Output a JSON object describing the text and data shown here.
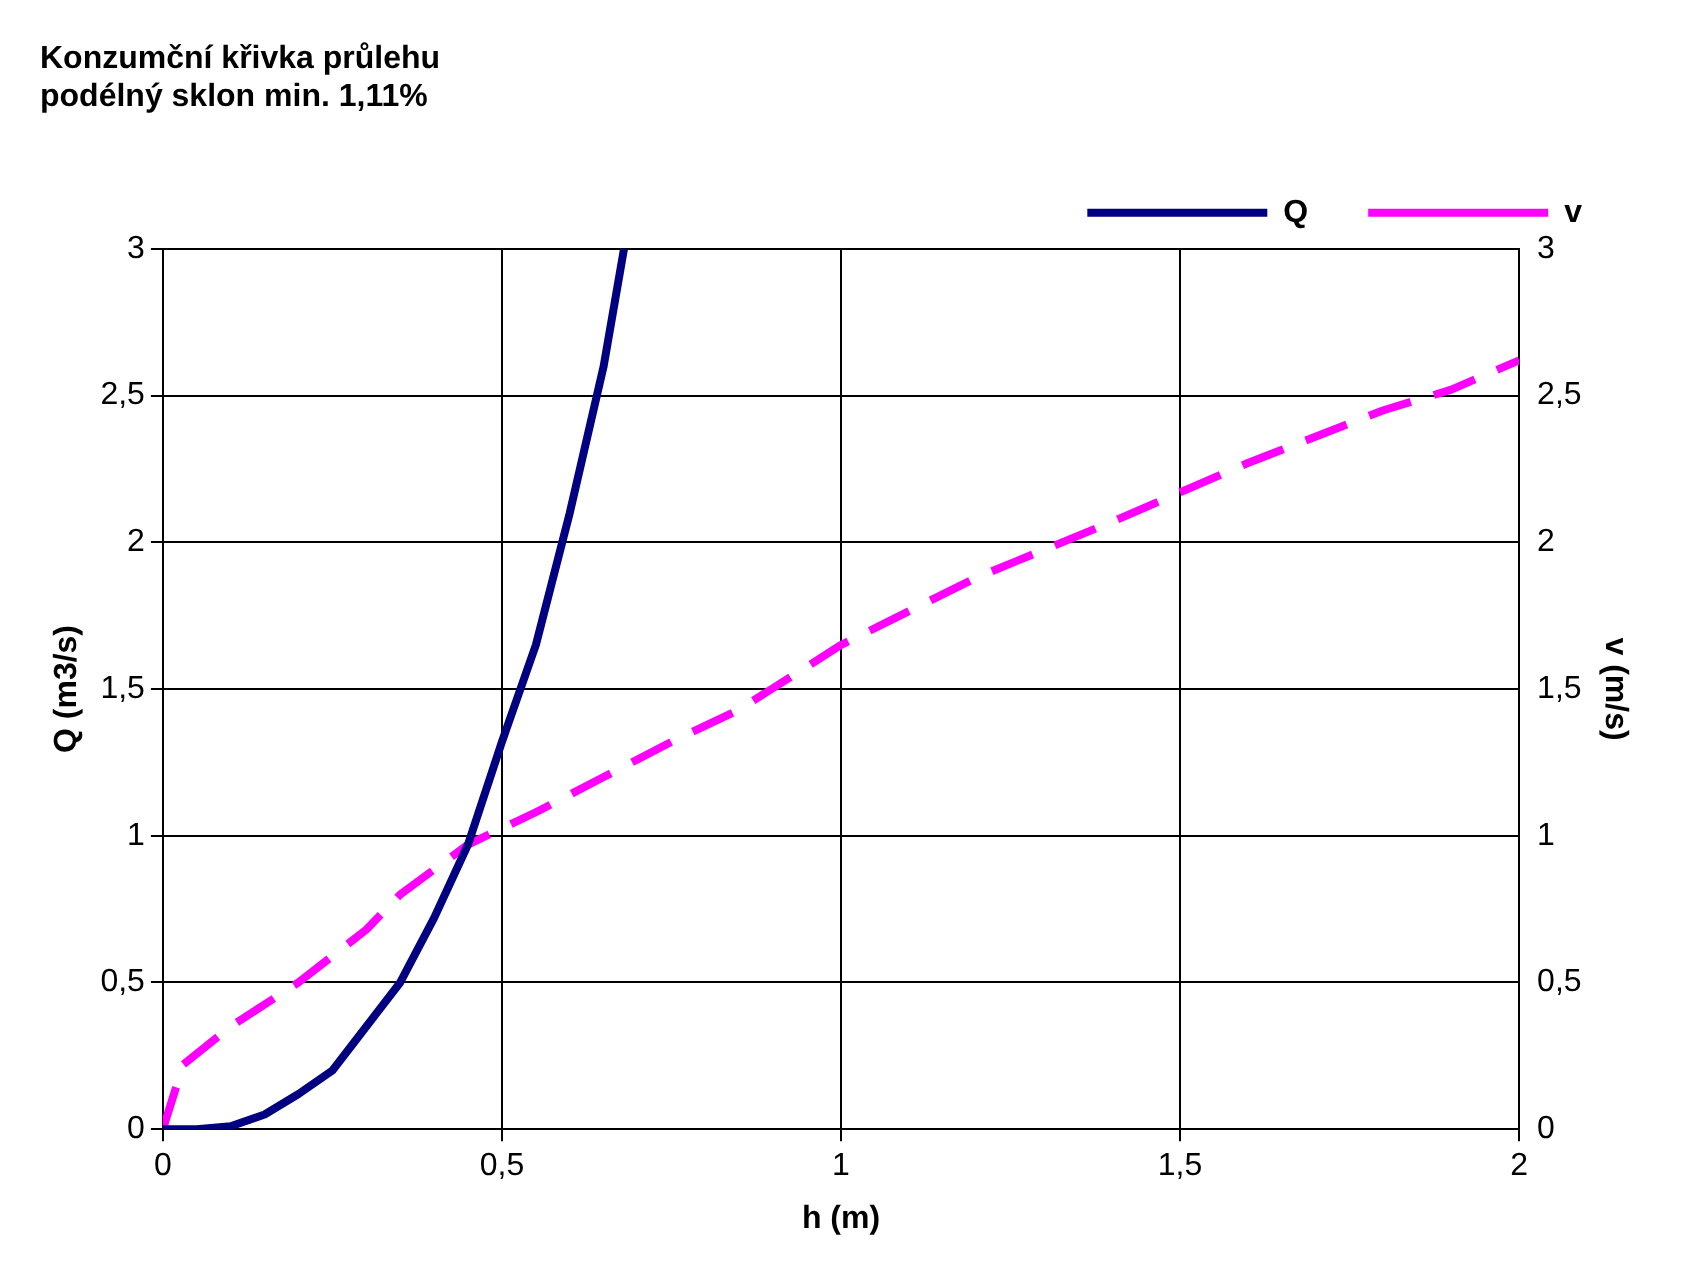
{
  "chart_data": {
    "type": "line",
    "title": "Konzumční křivka průlehu\npodélný sklon min. 1,11%",
    "xlabel": "h (m)",
    "ylabel": "Q (m3/s)",
    "y2label": "v (m/s)",
    "xlim": [
      0,
      2
    ],
    "xticks": [
      0,
      {
        "value": 0.5,
        "label": "0,5"
      },
      1,
      {
        "value": 1.5,
        "label": "1,5"
      },
      2
    ],
    "ylim": [
      0,
      3
    ],
    "yticks": [
      0,
      {
        "value": 0.5,
        "label": "0,5"
      },
      1,
      {
        "value": 1.5,
        "label": "1,5"
      },
      2,
      {
        "value": 2.5,
        "label": "2,5"
      },
      3
    ],
    "y2lim": [
      0,
      3
    ],
    "y2ticks": [
      0,
      {
        "value": 0.5,
        "label": "0,5"
      },
      1,
      {
        "value": 1.5,
        "label": "1,5"
      },
      2,
      {
        "value": 2.5,
        "label": "2,5"
      },
      3
    ],
    "grid": true,
    "legend": "top right",
    "marker": "none",
    "series": [
      {
        "name": "Q",
        "color": "#000080",
        "line_style": "solid",
        "x": [
          0,
          0.05,
          0.1,
          0.15,
          0.2,
          0.25,
          0.3,
          0.35,
          0.4,
          0.45,
          0.5,
          0.55,
          0.6,
          0.65,
          0.68
        ],
        "values": [
          0,
          0,
          0.01,
          0.05,
          0.12,
          0.2,
          0.35,
          0.5,
          0.72,
          0.97,
          1.32,
          1.65,
          2.1,
          2.6,
          3.0
        ]
      },
      {
        "name": "v",
        "color": "#ff00ff",
        "line_style": "dashed",
        "axis": "y2",
        "x": [
          0,
          0.03,
          0.1,
          0.2,
          0.3,
          0.35,
          0.45,
          0.55,
          0.65,
          0.75,
          0.85,
          1,
          1.2,
          1.4,
          1.6,
          1.8,
          1.9,
          2
        ],
        "values": [
          0,
          0.22,
          0.35,
          0.5,
          0.68,
          0.8,
          0.97,
          1.08,
          1.2,
          1.32,
          1.43,
          1.65,
          1.88,
          2.07,
          2.27,
          2.45,
          2.52,
          2.62
        ]
      }
    ]
  }
}
